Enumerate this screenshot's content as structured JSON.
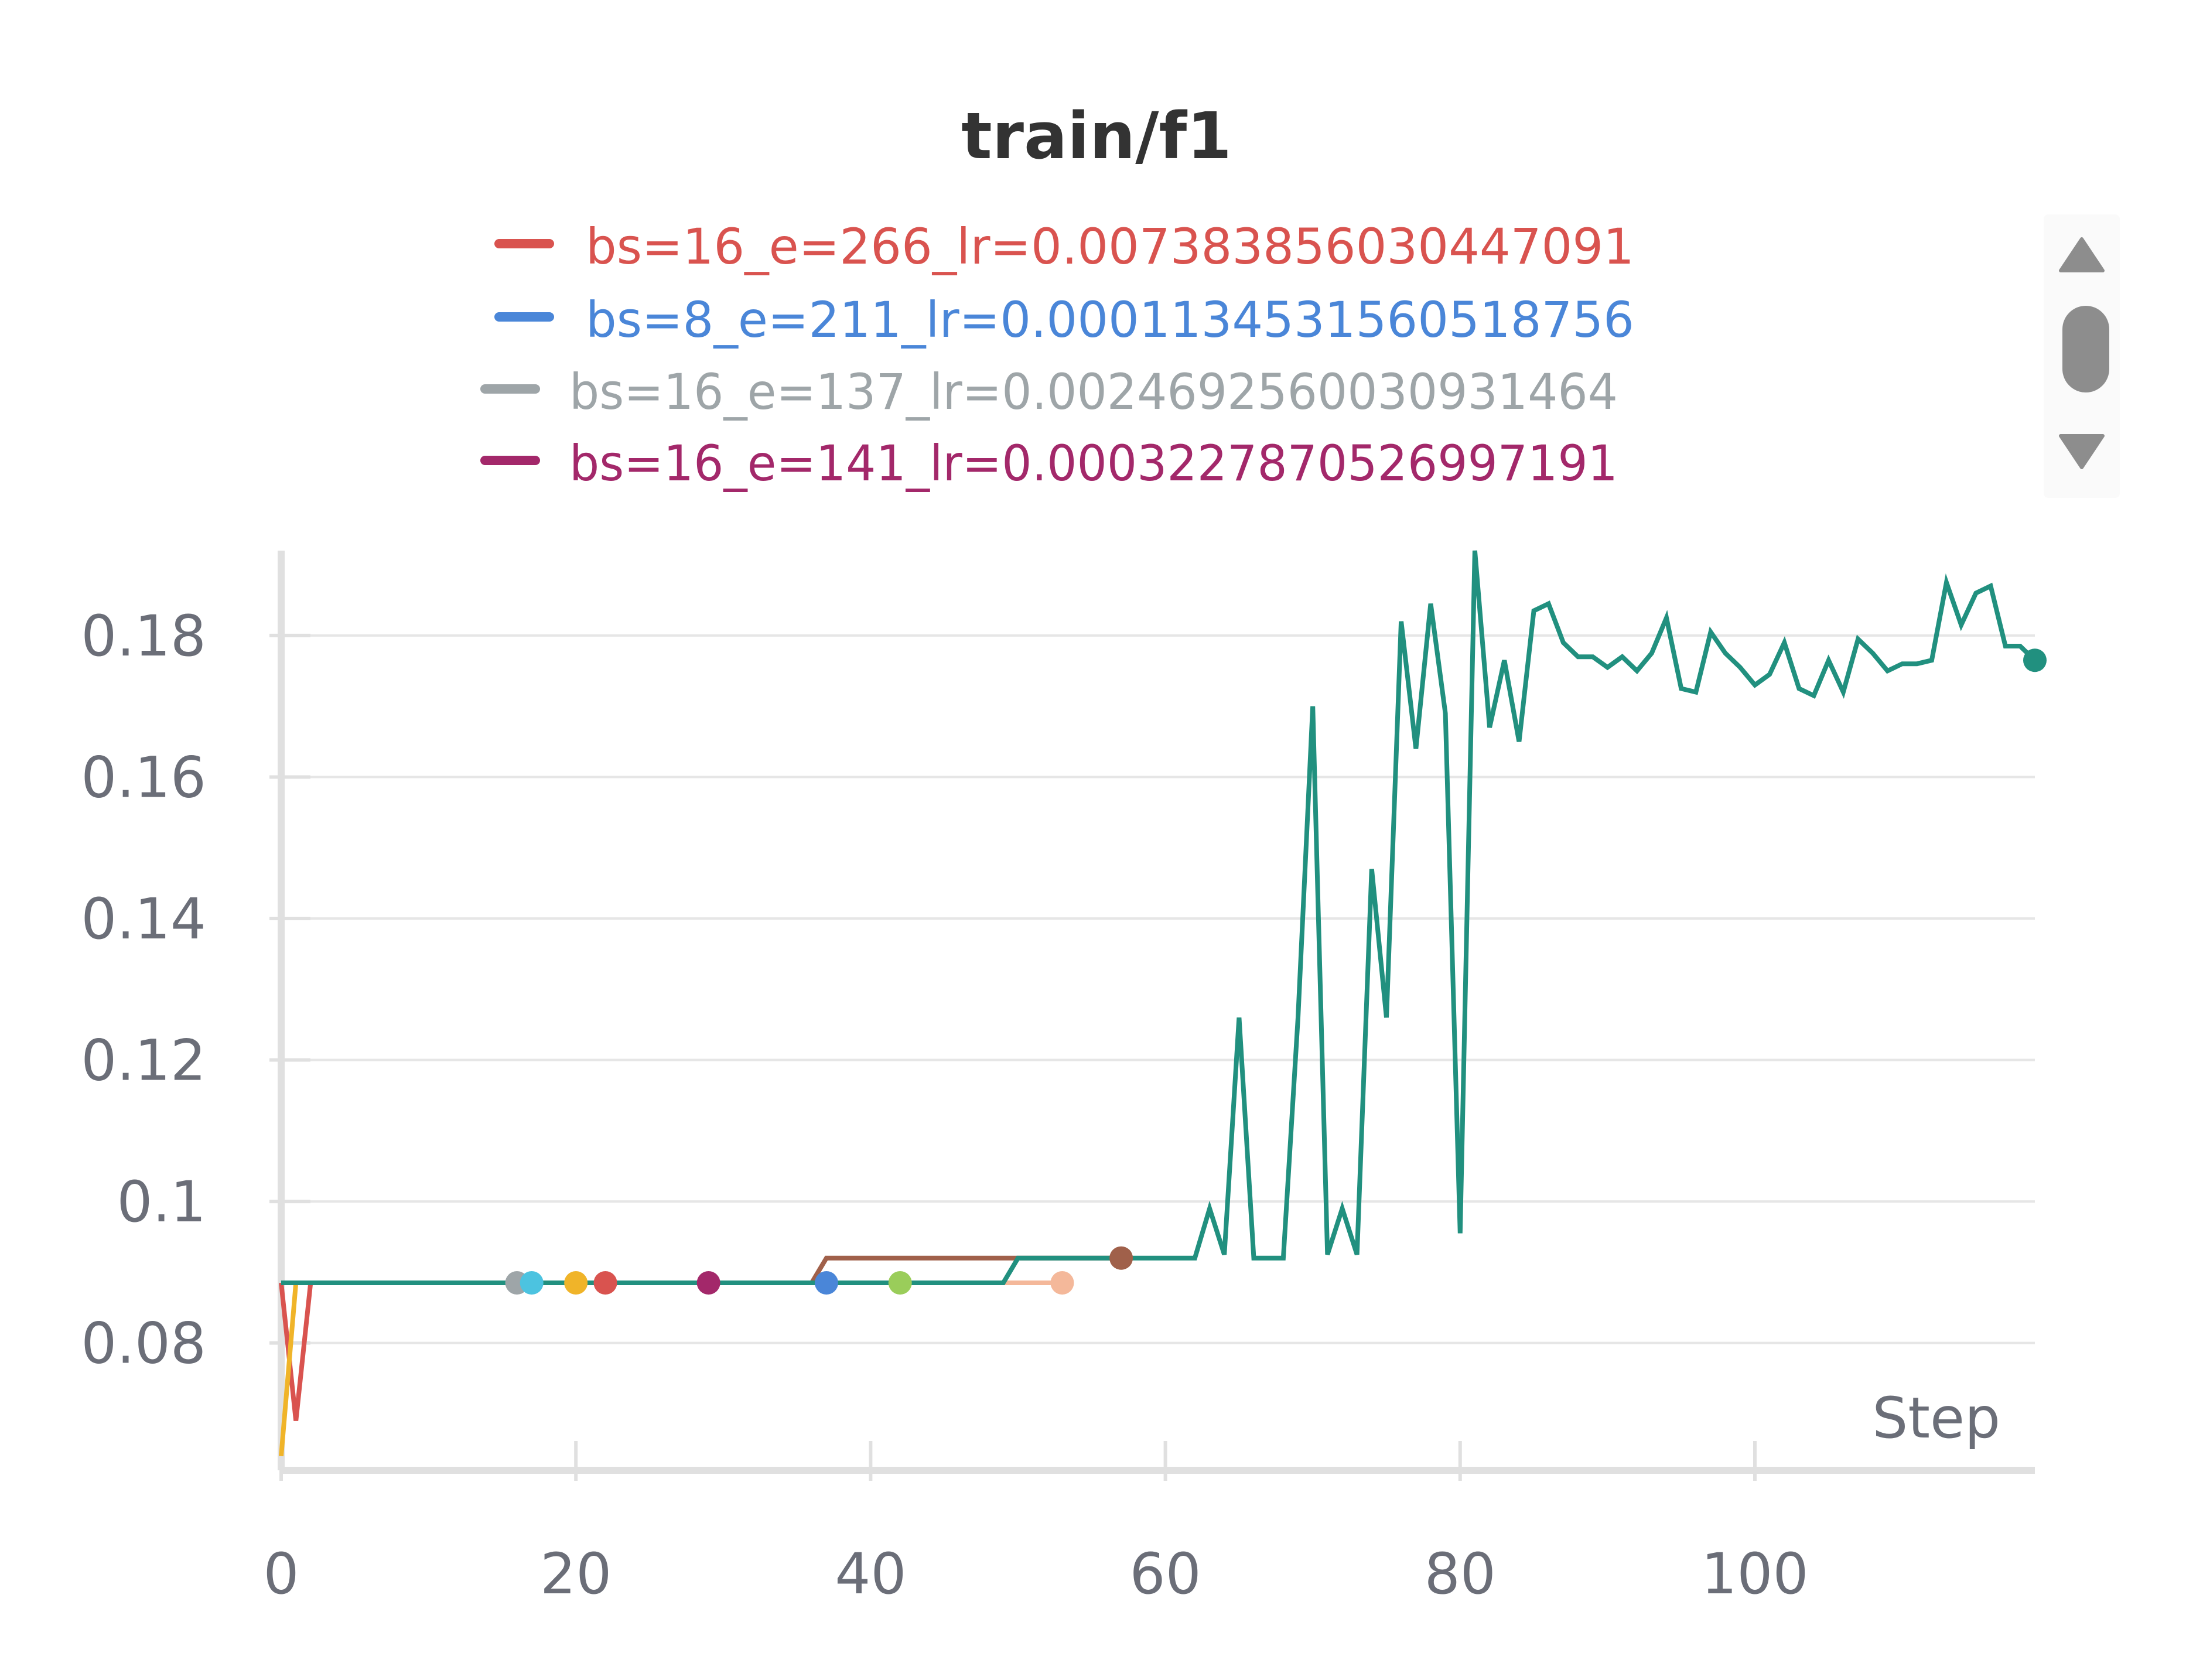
{
  "chart_data": {
    "type": "line",
    "title": "train/f1",
    "xlabel": "Step",
    "ylabel": "",
    "xlim": [
      0,
      119
    ],
    "ylim": [
      0.062,
      0.192
    ],
    "xticks": [
      0,
      20,
      40,
      60,
      80,
      100
    ],
    "yticks": [
      0.08,
      0.1,
      0.12,
      0.14,
      0.16,
      0.18
    ],
    "ytick_labels": [
      "0.08",
      "0.1",
      "0.12",
      "0.14",
      "0.16",
      "0.18"
    ],
    "grid": true,
    "legend": {
      "position": "top-center",
      "entries": [
        {
          "label": "bs=16_e=266_lr=0.007383856030447091",
          "color": "#d9534f"
        },
        {
          "label": "bs=8_e=211_lr=0.00011345315605187​56",
          "color": "#4a86d8"
        },
        {
          "label": "bs=16_e=137_lr=0.0024692560030931464",
          "color": "#9ea5a8"
        },
        {
          "label": "bs=16_e=141_lr=0.00032278705269971​91",
          "color": "#a3286a"
        }
      ]
    },
    "series": [
      {
        "color": "#d9534f",
        "x": [
          0,
          1,
          2,
          3,
          22
        ],
        "y": [
          0.0885,
          0.069,
          0.0885,
          0.0885,
          0.0885
        ]
      },
      {
        "color": "#9ea5a8",
        "x": [
          0,
          16
        ],
        "y": [
          0.0885,
          0.0885
        ]
      },
      {
        "color": "#4cc3e0",
        "x": [
          0,
          17
        ],
        "y": [
          0.0885,
          0.0885
        ]
      },
      {
        "color": "#a3286a",
        "x": [
          0,
          29
        ],
        "y": [
          0.0885,
          0.0885
        ]
      },
      {
        "color": "#4a86d8",
        "x": [
          0,
          37
        ],
        "y": [
          0.0885,
          0.0885
        ]
      },
      {
        "color": "#9acd5a",
        "x": [
          0,
          42
        ],
        "y": [
          0.0885,
          0.0885
        ]
      },
      {
        "color": "#f4b89a",
        "x": [
          0,
          53
        ],
        "y": [
          0.0885,
          0.0885
        ]
      },
      {
        "color": "#a0604a",
        "x": [
          0,
          36,
          37,
          50,
          57
        ],
        "y": [
          0.0885,
          0.0885,
          0.092,
          0.092,
          0.092
        ]
      },
      {
        "color": "#f0b429",
        "x": [
          0,
          1,
          20
        ],
        "y": [
          0.064,
          0.0885,
          0.0885
        ]
      },
      {
        "color": "#21907f",
        "x": [
          0,
          49,
          50,
          62,
          63,
          64,
          65,
          66,
          67,
          68,
          69,
          70,
          71,
          72,
          73,
          74,
          75,
          76,
          77,
          78,
          79,
          80,
          81,
          82,
          83,
          84,
          85,
          86,
          87,
          88,
          89,
          90,
          91,
          92,
          93,
          94,
          95,
          96,
          97,
          98,
          99,
          100,
          101,
          102,
          103,
          104,
          105,
          106,
          107,
          108,
          109,
          110,
          111,
          112,
          113,
          114,
          115,
          116,
          117,
          118,
          119
        ],
        "y": [
          0.0885,
          0.0885,
          0.092,
          0.092,
          0.099,
          0.0925,
          0.126,
          0.092,
          0.092,
          0.092,
          0.126,
          0.17,
          0.0925,
          0.099,
          0.0925,
          0.147,
          0.126,
          0.182,
          0.164,
          0.1845,
          0.169,
          0.0955,
          0.192,
          0.167,
          0.1765,
          0.165,
          0.1835,
          0.1845,
          0.179,
          0.177,
          0.177,
          0.1755,
          0.177,
          0.175,
          0.1775,
          0.1825,
          0.1725,
          0.172,
          0.1805,
          0.1775,
          0.1755,
          0.173,
          0.1745,
          0.179,
          0.1725,
          0.1715,
          0.1765,
          0.172,
          0.1795,
          0.1775,
          0.175,
          0.176,
          0.176,
          0.1765,
          0.1875,
          0.1815,
          0.186,
          0.187,
          0.1785,
          0.1785,
          0.1765
        ]
      }
    ]
  },
  "scroll": {
    "up_icon": "triangle-up-icon",
    "down_icon": "triangle-down-icon"
  }
}
